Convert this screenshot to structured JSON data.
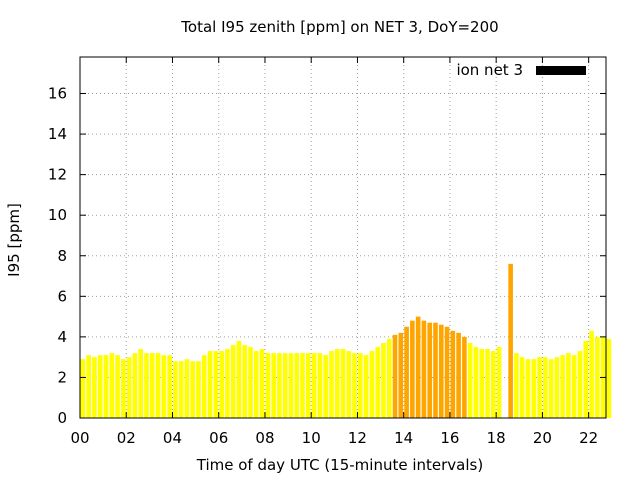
{
  "chart_data": {
    "type": "bar",
    "title": "Total I95 zenith [ppm] on NET 3, DoY=200",
    "xlabel": "Time of day UTC (15-minute intervals)",
    "ylabel": "I95 [ppm]",
    "xlim": [
      0,
      22.75
    ],
    "ylim": [
      0,
      17.8
    ],
    "xticks": [
      "00",
      "02",
      "04",
      "06",
      "08",
      "10",
      "12",
      "14",
      "16",
      "18",
      "20",
      "22"
    ],
    "yticks": [
      "0",
      "2",
      "4",
      "6",
      "8",
      "10",
      "12",
      "14",
      "16"
    ],
    "grid": true,
    "legend": {
      "position": "top-right",
      "entries": [
        {
          "label": "ion net 3",
          "color": "#000000"
        }
      ]
    },
    "interval_hours": 0.25,
    "series": [
      {
        "name": "ion net 3",
        "x_start": 0,
        "values": [
          2.9,
          3.1,
          3.0,
          3.1,
          3.1,
          3.2,
          3.1,
          2.9,
          3.0,
          3.2,
          3.4,
          3.2,
          3.2,
          3.2,
          3.1,
          3.1,
          2.8,
          2.8,
          2.9,
          2.8,
          2.8,
          3.1,
          3.3,
          3.3,
          3.3,
          3.4,
          3.6,
          3.8,
          3.6,
          3.5,
          3.3,
          3.4,
          3.2,
          3.2,
          3.2,
          3.2,
          3.2,
          3.2,
          3.2,
          3.2,
          3.2,
          3.2,
          3.1,
          3.3,
          3.4,
          3.4,
          3.3,
          3.2,
          3.2,
          3.1,
          3.3,
          3.5,
          3.7,
          3.9,
          4.1,
          4.2,
          4.5,
          4.8,
          5.0,
          4.8,
          4.7,
          4.7,
          4.6,
          4.5,
          4.3,
          4.2,
          4.0,
          3.7,
          3.5,
          3.4,
          3.4,
          3.3,
          3.5,
          0.0,
          7.6,
          3.2,
          3.0,
          2.9,
          2.9,
          3.0,
          3.0,
          2.9,
          3.0,
          3.1,
          3.2,
          3.1,
          3.3,
          3.8,
          4.3,
          4.0,
          4.0,
          3.9
        ],
        "tiers": [
          "low",
          "low",
          "low",
          "low",
          "low",
          "low",
          "low",
          "low",
          "low",
          "low",
          "low",
          "low",
          "low",
          "low",
          "low",
          "low",
          "low",
          "low",
          "low",
          "low",
          "low",
          "low",
          "low",
          "low",
          "low",
          "low",
          "low",
          "low",
          "low",
          "low",
          "low",
          "low",
          "low",
          "low",
          "low",
          "low",
          "low",
          "low",
          "low",
          "low",
          "low",
          "low",
          "low",
          "low",
          "low",
          "low",
          "low",
          "low",
          "low",
          "low",
          "low",
          "low",
          "low",
          "low",
          "high",
          "high",
          "high",
          "high",
          "high",
          "high",
          "high",
          "high",
          "high",
          "high",
          "high",
          "high",
          "high",
          "low",
          "low",
          "low",
          "low",
          "low",
          "low",
          "low",
          "high",
          "low",
          "low",
          "low",
          "low",
          "low",
          "low",
          "low",
          "low",
          "low",
          "low",
          "low",
          "low",
          "low",
          "low",
          "low",
          "low",
          "low"
        ]
      }
    ],
    "colors": {
      "low": "#ffff00",
      "high": "#ffa500"
    }
  }
}
